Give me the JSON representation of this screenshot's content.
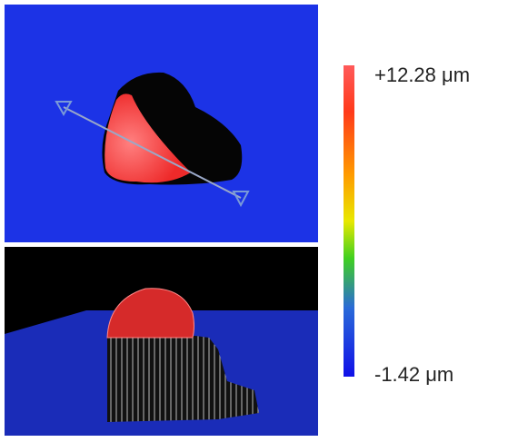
{
  "colorbar": {
    "max_label": "+12.28 μm",
    "min_label": "-1.42 μm"
  }
}
